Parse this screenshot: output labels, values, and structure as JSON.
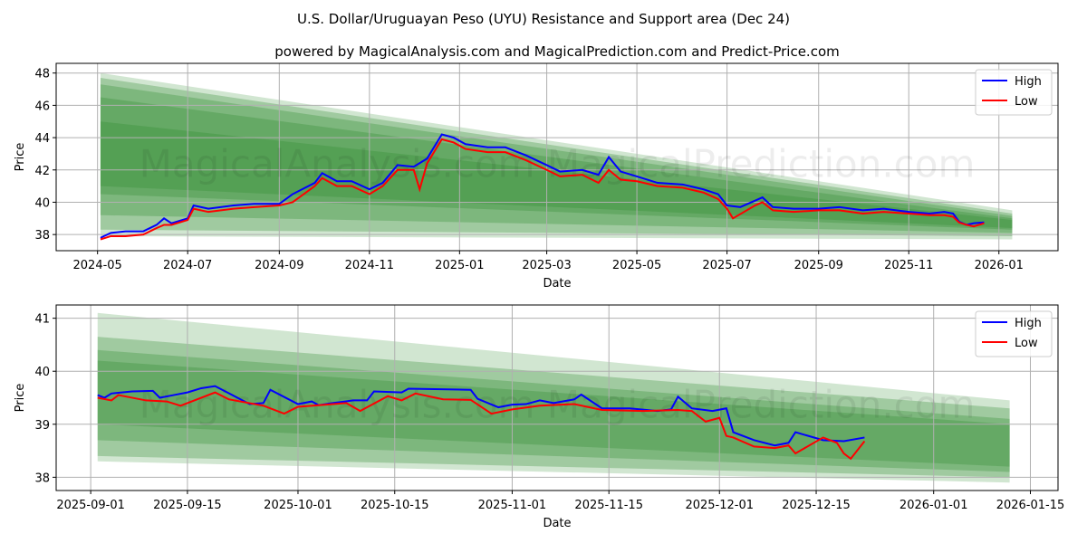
{
  "title": "U.S. Dollar/Uruguayan Peso (UYU) Resistance and Support area (Dec 24)",
  "subtitle": "powered by MagicalAnalysis.com and MagicalPrediction.com and Predict-Price.com",
  "watermark": "MagicalAnalysis.com    MagicalPrediction.com",
  "colors": {
    "high": "#0000ff",
    "low": "#ff0000",
    "band": "#2e8b2e"
  },
  "chart_data": [
    {
      "type": "line",
      "xlabel": "Date",
      "ylabel": "Price",
      "ylim": [
        37,
        48.6
      ],
      "xlim": [
        "2024-04-03",
        "2026-02-10"
      ],
      "yticks": [
        38,
        40,
        42,
        44,
        46,
        48
      ],
      "xticks": [
        "2024-05",
        "2024-07",
        "2024-09",
        "2024-11",
        "2025-01",
        "2025-03",
        "2025-05",
        "2025-07",
        "2025-09",
        "2025-11",
        "2026-01"
      ],
      "legend": [
        "High",
        "Low"
      ],
      "legend_position": "top-right",
      "grid": true,
      "bands": {
        "start": "2024-05-03",
        "end": "2026-01-10",
        "layers": [
          [
            48.0,
            39.5,
            37.9,
            37.7
          ],
          [
            47.7,
            39.3,
            38.3,
            37.9
          ],
          [
            47.3,
            39.15,
            39.2,
            38.1
          ],
          [
            46.5,
            39.0,
            40.5,
            38.3
          ],
          [
            45.0,
            38.9,
            41.0,
            38.4
          ]
        ]
      },
      "series": [
        {
          "name": "High",
          "x": [
            "2024-05-03",
            "2024-05-10",
            "2024-05-20",
            "2024-06-01",
            "2024-06-10",
            "2024-06-15",
            "2024-06-20",
            "2024-07-01",
            "2024-07-05",
            "2024-07-15",
            "2024-08-01",
            "2024-08-15",
            "2024-09-01",
            "2024-09-10",
            "2024-09-25",
            "2024-09-30",
            "2024-10-10",
            "2024-10-20",
            "2024-11-01",
            "2024-11-10",
            "2024-11-20",
            "2024-12-01",
            "2024-12-10",
            "2024-12-20",
            "2024-12-28",
            "2025-01-05",
            "2025-01-20",
            "2025-02-01",
            "2025-02-15",
            "2025-03-01",
            "2025-03-10",
            "2025-03-25",
            "2025-04-05",
            "2025-04-12",
            "2025-04-20",
            "2025-05-01",
            "2025-05-15",
            "2025-06-01",
            "2025-06-15",
            "2025-06-25",
            "2025-07-01",
            "2025-07-10",
            "2025-07-20",
            "2025-07-25",
            "2025-08-01",
            "2025-08-15",
            "2025-09-01",
            "2025-09-15",
            "2025-10-01",
            "2025-10-15",
            "2025-11-01",
            "2025-11-15",
            "2025-11-25",
            "2025-12-01",
            "2025-12-05",
            "2025-12-10",
            "2025-12-15",
            "2025-12-22"
          ],
          "y": [
            37.8,
            38.1,
            38.2,
            38.2,
            38.6,
            39.0,
            38.7,
            39.0,
            39.8,
            39.6,
            39.8,
            39.9,
            39.9,
            40.5,
            41.2,
            41.8,
            41.3,
            41.3,
            40.8,
            41.2,
            42.3,
            42.2,
            42.7,
            44.2,
            44.0,
            43.6,
            43.4,
            43.4,
            42.9,
            42.3,
            41.9,
            42.0,
            41.7,
            42.8,
            41.9,
            41.6,
            41.2,
            41.1,
            40.8,
            40.5,
            39.8,
            39.7,
            40.1,
            40.3,
            39.7,
            39.6,
            39.6,
            39.7,
            39.5,
            39.6,
            39.4,
            39.3,
            39.4,
            39.3,
            38.8,
            38.6,
            38.7,
            38.75
          ]
        },
        {
          "name": "Low",
          "x": [
            "2024-05-03",
            "2024-05-10",
            "2024-05-20",
            "2024-06-01",
            "2024-06-10",
            "2024-06-15",
            "2024-06-20",
            "2024-07-01",
            "2024-07-05",
            "2024-07-15",
            "2024-08-01",
            "2024-08-15",
            "2024-09-01",
            "2024-09-10",
            "2024-09-25",
            "2024-09-30",
            "2024-10-10",
            "2024-10-20",
            "2024-11-01",
            "2024-11-10",
            "2024-11-20",
            "2024-12-01",
            "2024-12-05",
            "2024-12-10",
            "2024-12-20",
            "2024-12-28",
            "2025-01-05",
            "2025-01-20",
            "2025-02-01",
            "2025-02-15",
            "2025-03-01",
            "2025-03-10",
            "2025-03-25",
            "2025-04-05",
            "2025-04-12",
            "2025-04-20",
            "2025-05-01",
            "2025-05-15",
            "2025-06-01",
            "2025-06-15",
            "2025-06-25",
            "2025-07-01",
            "2025-07-05",
            "2025-07-20",
            "2025-07-25",
            "2025-08-01",
            "2025-08-15",
            "2025-09-01",
            "2025-09-15",
            "2025-10-01",
            "2025-10-15",
            "2025-11-01",
            "2025-11-15",
            "2025-11-25",
            "2025-12-01",
            "2025-12-05",
            "2025-12-10",
            "2025-12-15",
            "2025-12-22"
          ],
          "y": [
            37.7,
            37.9,
            37.9,
            38.0,
            38.4,
            38.6,
            38.6,
            38.9,
            39.6,
            39.4,
            39.6,
            39.7,
            39.8,
            40.0,
            41.0,
            41.5,
            41.0,
            41.0,
            40.5,
            41.0,
            42.0,
            42.0,
            40.8,
            42.4,
            43.9,
            43.7,
            43.3,
            43.1,
            43.1,
            42.6,
            42.0,
            41.6,
            41.7,
            41.2,
            42.0,
            41.4,
            41.3,
            41.0,
            40.9,
            40.6,
            40.2,
            39.6,
            39.0,
            39.8,
            40.0,
            39.5,
            39.4,
            39.5,
            39.5,
            39.3,
            39.4,
            39.3,
            39.2,
            39.2,
            39.1,
            38.75,
            38.6,
            38.5,
            38.7
          ]
        }
      ]
    },
    {
      "type": "line",
      "xlabel": "Date",
      "ylabel": "Price",
      "ylim": [
        37.75,
        41.25
      ],
      "xlim": [
        "2025-08-27",
        "2026-01-19"
      ],
      "yticks": [
        38,
        39,
        40,
        41
      ],
      "xticks": [
        "2025-09-01",
        "2025-09-15",
        "2025-10-01",
        "2025-10-15",
        "2025-11-01",
        "2025-11-15",
        "2025-12-01",
        "2025-12-15",
        "2026-01-01",
        "2026-01-15"
      ],
      "legend": [
        "High",
        "Low"
      ],
      "legend_position": "top-right",
      "grid": true,
      "bands": {
        "start": "2025-09-02",
        "end": "2026-01-12",
        "layers": [
          [
            41.1,
            39.45,
            38.3,
            37.9
          ],
          [
            40.65,
            39.3,
            38.4,
            38.0
          ],
          [
            40.4,
            39.1,
            38.7,
            38.1
          ],
          [
            40.2,
            39.0,
            39.0,
            38.2
          ]
        ]
      },
      "series": [
        {
          "name": "High",
          "x": [
            "2025-09-02",
            "2025-09-03",
            "2025-09-04",
            "2025-09-07",
            "2025-09-10",
            "2025-09-11",
            "2025-09-13",
            "2025-09-15",
            "2025-09-17",
            "2025-09-19",
            "2025-09-24",
            "2025-09-26",
            "2025-09-27",
            "2025-10-01",
            "2025-10-03",
            "2025-10-04",
            "2025-10-06",
            "2025-10-09",
            "2025-10-11",
            "2025-10-12",
            "2025-10-16",
            "2025-10-17",
            "2025-10-26",
            "2025-10-27",
            "2025-10-30",
            "2025-11-01",
            "2025-11-03",
            "2025-11-05",
            "2025-11-07",
            "2025-11-10",
            "2025-11-11",
            "2025-11-14",
            "2025-11-18",
            "2025-11-22",
            "2025-11-24",
            "2025-11-25",
            "2025-11-27",
            "2025-11-30",
            "2025-12-02",
            "2025-12-03",
            "2025-12-06",
            "2025-12-09",
            "2025-12-11",
            "2025-12-12",
            "2025-12-16",
            "2025-12-19",
            "2025-12-22"
          ],
          "y": [
            39.55,
            39.5,
            39.58,
            39.62,
            39.63,
            39.5,
            39.55,
            39.6,
            39.68,
            39.72,
            39.38,
            39.4,
            39.65,
            39.38,
            39.43,
            39.36,
            39.4,
            39.45,
            39.45,
            39.62,
            39.6,
            39.67,
            39.65,
            39.48,
            39.32,
            39.37,
            39.38,
            39.45,
            39.4,
            39.47,
            39.56,
            39.3,
            39.3,
            39.25,
            39.28,
            39.52,
            39.3,
            39.25,
            39.3,
            38.85,
            38.7,
            38.6,
            38.65,
            38.85,
            38.7,
            38.68,
            38.75
          ]
        },
        {
          "name": "Low",
          "x": [
            "2025-09-02",
            "2025-09-04",
            "2025-09-05",
            "2025-09-09",
            "2025-09-12",
            "2025-09-14",
            "2025-09-19",
            "2025-09-21",
            "2025-09-26",
            "2025-09-29",
            "2025-10-01",
            "2025-10-04",
            "2025-10-08",
            "2025-10-10",
            "2025-10-14",
            "2025-10-16",
            "2025-10-18",
            "2025-10-22",
            "2025-10-26",
            "2025-10-29",
            "2025-11-01",
            "2025-11-05",
            "2025-11-10",
            "2025-11-14",
            "2025-11-20",
            "2025-11-25",
            "2025-11-27",
            "2025-11-29",
            "2025-12-01",
            "2025-12-02",
            "2025-12-03",
            "2025-12-06",
            "2025-12-09",
            "2025-12-11",
            "2025-12-12",
            "2025-12-16",
            "2025-12-18",
            "2025-12-19",
            "2025-12-20",
            "2025-12-22"
          ],
          "y": [
            39.5,
            39.45,
            39.55,
            39.45,
            39.43,
            39.35,
            39.6,
            39.47,
            39.35,
            39.2,
            39.33,
            39.36,
            39.4,
            39.25,
            39.53,
            39.45,
            39.58,
            39.47,
            39.46,
            39.2,
            39.28,
            39.35,
            39.38,
            39.27,
            39.25,
            39.27,
            39.25,
            39.05,
            39.12,
            38.78,
            38.75,
            38.58,
            38.55,
            38.6,
            38.45,
            38.75,
            38.65,
            38.45,
            38.35,
            38.68
          ]
        }
      ]
    }
  ]
}
